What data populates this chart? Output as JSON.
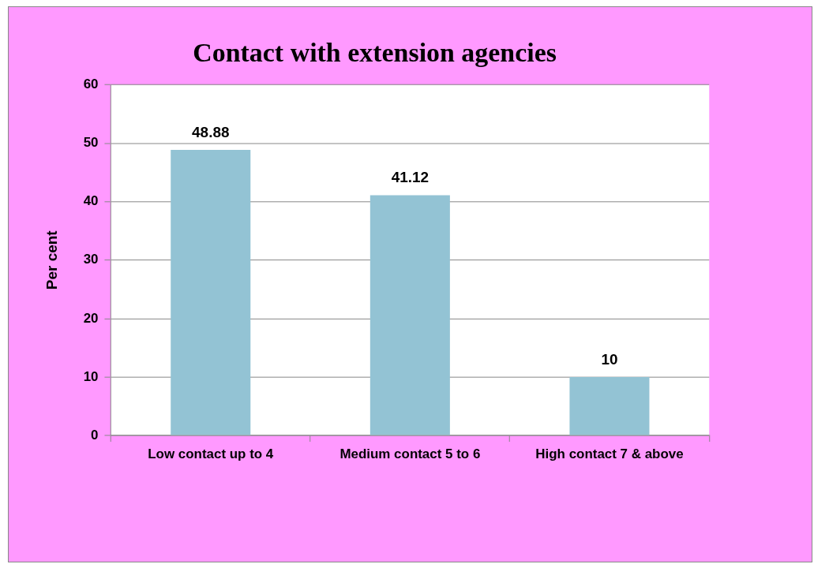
{
  "chart_data": {
    "type": "bar",
    "title": "Contact with extension agencies",
    "ylabel": "Per cent",
    "categories": [
      "Low contact up to 4",
      "Medium contact 5 to 6",
      "High contact 7 & above"
    ],
    "values": [
      48.88,
      41.12,
      10
    ],
    "color": "#93c3d4",
    "ylim": [
      0,
      60
    ],
    "yticks": [
      0,
      10,
      20,
      30,
      40,
      50,
      60
    ],
    "grid": "y",
    "data_labels": true,
    "legend": false
  }
}
